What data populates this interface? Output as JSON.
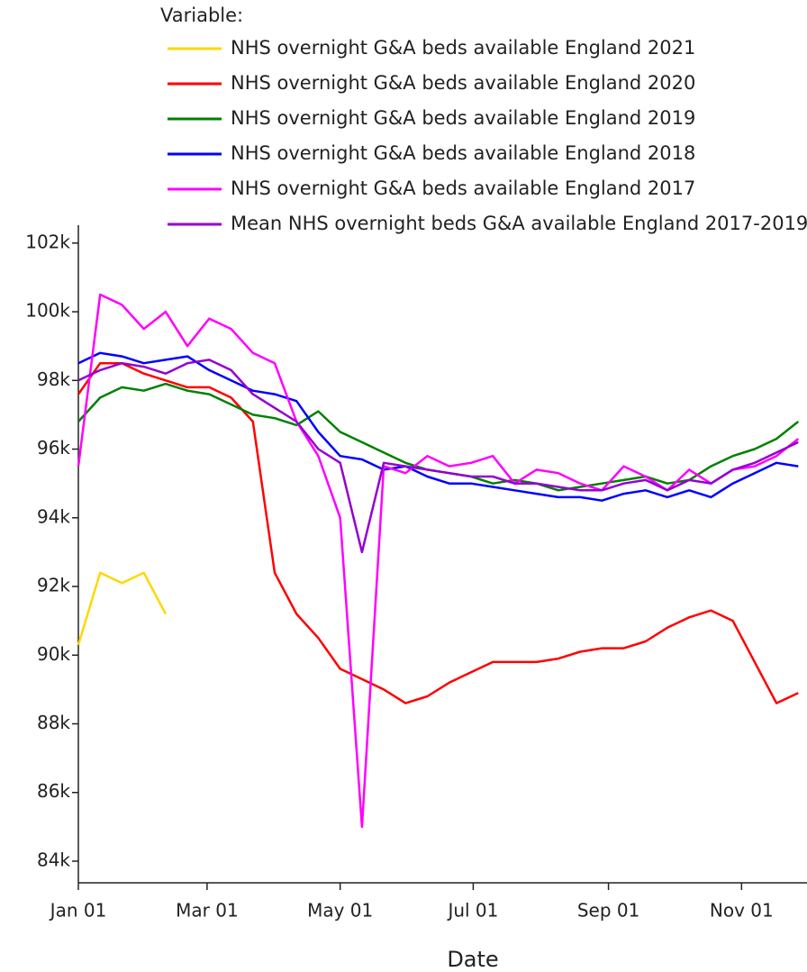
{
  "chart_data": {
    "type": "line",
    "legend_title": "Variable:",
    "xlabel": "Date",
    "x": [
      0,
      10,
      20,
      30,
      40,
      50,
      60,
      70,
      80,
      90,
      100,
      110,
      120,
      130,
      140,
      150,
      160,
      170,
      180,
      190,
      200,
      210,
      220,
      230,
      240,
      250,
      260,
      270,
      280,
      290,
      300,
      310,
      320,
      330
    ],
    "xlim": [
      0,
      334
    ],
    "xticks": [
      {
        "value": 0,
        "label": "Jan 01"
      },
      {
        "value": 59,
        "label": "Mar 01"
      },
      {
        "value": 120,
        "label": "May 01"
      },
      {
        "value": 181,
        "label": "Jul 01"
      },
      {
        "value": 243,
        "label": "Sep 01"
      },
      {
        "value": 304,
        "label": "Nov 01"
      }
    ],
    "ylim": [
      83370,
      102520
    ],
    "yticks": [
      {
        "value": 84000,
        "label": "84k"
      },
      {
        "value": 86000,
        "label": "86k"
      },
      {
        "value": 88000,
        "label": "88k"
      },
      {
        "value": 90000,
        "label": "90k"
      },
      {
        "value": 92000,
        "label": "92k"
      },
      {
        "value": 94000,
        "label": "94k"
      },
      {
        "value": 96000,
        "label": "96k"
      },
      {
        "value": 98000,
        "label": "98k"
      },
      {
        "value": 100000,
        "label": "100k"
      },
      {
        "value": 102000,
        "label": "102k"
      }
    ],
    "series": [
      {
        "name": "NHS overnight G&A beds available England 2021",
        "color": "#ffd700",
        "values": [
          90300,
          92400,
          92100,
          92400,
          91200,
          null,
          null,
          null,
          null,
          null,
          null,
          null,
          null,
          null,
          null,
          null,
          null,
          null,
          null,
          null,
          null,
          null,
          null,
          null,
          null,
          null,
          null,
          null,
          null,
          null,
          null,
          null,
          null,
          null
        ]
      },
      {
        "name": "NHS overnight G&A beds available England 2020",
        "color": "#ff0000",
        "values": [
          97600,
          98500,
          98500,
          98200,
          98000,
          97800,
          97800,
          97500,
          96800,
          92400,
          91200,
          90500,
          89600,
          89300,
          89000,
          88600,
          88800,
          89200,
          89500,
          89800,
          89800,
          89800,
          89900,
          90100,
          90200,
          90200,
          90400,
          90800,
          91100,
          91300,
          91000,
          89800,
          88600,
          88900
        ]
      },
      {
        "name": "NHS overnight G&A beds available England 2019",
        "color": "#008000",
        "values": [
          96800,
          97500,
          97800,
          97700,
          97900,
          97700,
          97600,
          97300,
          97000,
          96900,
          96700,
          97100,
          96500,
          96200,
          95900,
          95600,
          95400,
          95300,
          95200,
          95000,
          95100,
          95000,
          94800,
          94900,
          95000,
          95100,
          95200,
          95000,
          95100,
          95500,
          95800,
          96000,
          96300,
          96800
        ]
      },
      {
        "name": "NHS overnight G&A beds available England 2018",
        "color": "#0000ff",
        "values": [
          98500,
          98800,
          98700,
          98500,
          98600,
          98700,
          98300,
          98000,
          97700,
          97600,
          97400,
          96500,
          95800,
          95700,
          95400,
          95500,
          95200,
          95000,
          95000,
          94900,
          94800,
          94700,
          94600,
          94600,
          94500,
          94700,
          94800,
          94600,
          94800,
          94600,
          95000,
          95300,
          95600,
          95500
        ]
      },
      {
        "name": "NHS overnight G&A beds available England 2017",
        "color": "#ff00ff",
        "values": [
          95500,
          100500,
          100200,
          99500,
          100000,
          99000,
          99800,
          99500,
          98800,
          98500,
          96800,
          95800,
          94000,
          85000,
          95500,
          95300,
          95800,
          95500,
          95600,
          95800,
          95000,
          95400,
          95300,
          95000,
          94800,
          95500,
          95200,
          94800,
          95400,
          95000,
          95400,
          95500,
          95800,
          96300
        ]
      },
      {
        "name": "Mean NHS overnight beds G&A available England 2017-2019",
        "color": "#9400d3",
        "values": [
          98000,
          98300,
          98500,
          98400,
          98200,
          98500,
          98600,
          98300,
          97600,
          97200,
          96800,
          96000,
          95600,
          93000,
          95600,
          95500,
          95400,
          95300,
          95200,
          95200,
          95000,
          95000,
          94900,
          94800,
          94800,
          95000,
          95100,
          94800,
          95100,
          95000,
          95400,
          95600,
          95900,
          96200
        ]
      }
    ]
  }
}
